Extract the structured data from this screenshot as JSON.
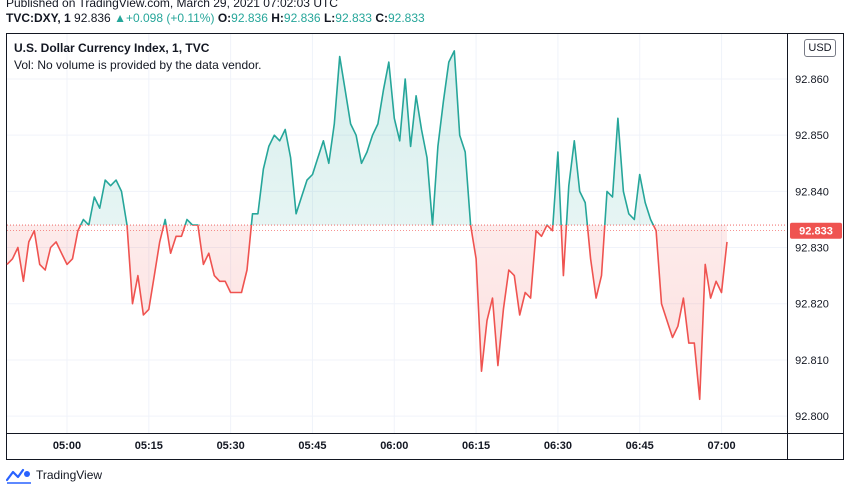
{
  "header": {
    "published": "Published on TradingView.com, March 29, 2021 07:02:03 UTC",
    "symbol": "TVC:DXY, 1",
    "last": "92.836",
    "change_arrow": "▲",
    "change": "+0.098 (+0.11%)",
    "o_label": "O:",
    "o_value": "92.836",
    "h_label": "H:",
    "h_value": "92.836",
    "l_label": "L:",
    "l_value": "92.833",
    "c_label": "C:",
    "c_value": "92.833"
  },
  "legend": {
    "title": "U.S. Dollar Currency Index, 1, TVC",
    "volume_note": "Vol: No volume is provided by the data vendor."
  },
  "currency_badge": "USD",
  "footer": {
    "brand": "TradingView",
    "logo_icon": "tradingview-logo-icon"
  },
  "colors": {
    "up": "#26a69a",
    "down": "#ef5350",
    "grid": "#f0f3fa",
    "baseline": "#ef5350",
    "text": "#131722"
  },
  "chart_data": {
    "type": "line",
    "style": "baseline area",
    "title": "U.S. Dollar Currency Index, 1, TVC",
    "xlabel": "",
    "ylabel": "",
    "ylim": [
      92.797,
      92.868
    ],
    "xlim_minutes": [
      289,
      432
    ],
    "baseline": 92.834,
    "last_price_label": "92.833",
    "y_ticks": [
      92.8,
      92.81,
      92.82,
      92.83,
      92.84,
      92.85,
      92.86
    ],
    "y_tick_labels": [
      "92.800",
      "92.810",
      "92.820",
      "92.830",
      "92.840",
      "92.850",
      "92.860"
    ],
    "x_ticks_minutes": [
      300,
      315,
      330,
      345,
      360,
      375,
      390,
      405,
      420
    ],
    "x_tick_labels": [
      "05:00",
      "05:15",
      "05:30",
      "05:45",
      "06:00",
      "06:15",
      "06:30",
      "06:45",
      "07:00"
    ],
    "x": [
      289,
      290,
      291,
      292,
      293,
      294,
      295,
      296,
      297,
      298,
      299,
      300,
      301,
      302,
      303,
      304,
      305,
      306,
      307,
      308,
      309,
      310,
      311,
      312,
      313,
      314,
      315,
      316,
      317,
      318,
      319,
      320,
      321,
      322,
      323,
      324,
      325,
      326,
      327,
      328,
      329,
      330,
      331,
      332,
      333,
      334,
      335,
      336,
      337,
      338,
      339,
      340,
      341,
      342,
      343,
      344,
      345,
      346,
      347,
      348,
      349,
      350,
      351,
      352,
      353,
      354,
      355,
      356,
      357,
      358,
      359,
      360,
      361,
      362,
      363,
      364,
      365,
      366,
      367,
      368,
      369,
      370,
      371,
      372,
      373,
      374,
      375,
      376,
      377,
      378,
      379,
      380,
      381,
      382,
      383,
      384,
      385,
      386,
      387,
      388,
      389,
      390,
      391,
      392,
      393,
      394,
      395,
      396,
      397,
      398,
      399,
      400,
      401,
      402,
      403,
      404,
      405,
      406,
      407,
      408,
      409,
      410,
      411,
      412,
      413,
      414,
      415,
      416,
      417,
      418,
      419,
      420,
      421,
      422,
      423,
      424,
      425,
      426,
      427,
      428,
      429,
      430,
      431,
      432
    ],
    "y": [
      92.827,
      92.828,
      92.83,
      92.824,
      92.831,
      92.833,
      92.827,
      92.826,
      92.83,
      92.831,
      92.829,
      92.827,
      92.828,
      92.833,
      92.835,
      92.834,
      92.839,
      92.837,
      92.842,
      92.841,
      92.842,
      92.84,
      92.834,
      92.82,
      92.825,
      92.818,
      92.819,
      92.825,
      92.831,
      92.835,
      92.829,
      92.832,
      92.832,
      92.835,
      92.834,
      92.834,
      92.827,
      92.829,
      92.825,
      92.824,
      92.824,
      92.822,
      92.822,
      92.822,
      92.826,
      92.836,
      92.836,
      92.844,
      92.848,
      92.85,
      92.849,
      92.851,
      92.846,
      92.836,
      92.839,
      92.842,
      92.843,
      92.846,
      92.849,
      92.845,
      92.852,
      92.864,
      92.858,
      92.852,
      92.85,
      92.845,
      92.847,
      92.85,
      92.852,
      92.858,
      92.863,
      92.853,
      92.849,
      92.86,
      92.848,
      92.857,
      92.851,
      92.846,
      92.834,
      92.848,
      92.856,
      92.863,
      92.865,
      92.85,
      92.847,
      92.834,
      92.828,
      92.808,
      92.817,
      92.821,
      92.809,
      92.819,
      92.826,
      92.825,
      92.818,
      92.822,
      92.821,
      92.833,
      92.832,
      92.834,
      92.833,
      92.847,
      92.825,
      92.841,
      92.849,
      92.84,
      92.838,
      92.828,
      92.821,
      92.825,
      92.84,
      92.839,
      92.853,
      92.84,
      92.836,
      92.835,
      92.843,
      92.838,
      92.835,
      92.833,
      92.82,
      92.817,
      92.814,
      92.816,
      92.821,
      92.813,
      92.813,
      92.803,
      92.827,
      92.821,
      92.824,
      92.822,
      92.831,
      92.832,
      92.833,
      92.833,
      92.833,
      92.833,
      92.833,
      92.833,
      92.833,
      92.833,
      92.833,
      92.833
    ]
  }
}
